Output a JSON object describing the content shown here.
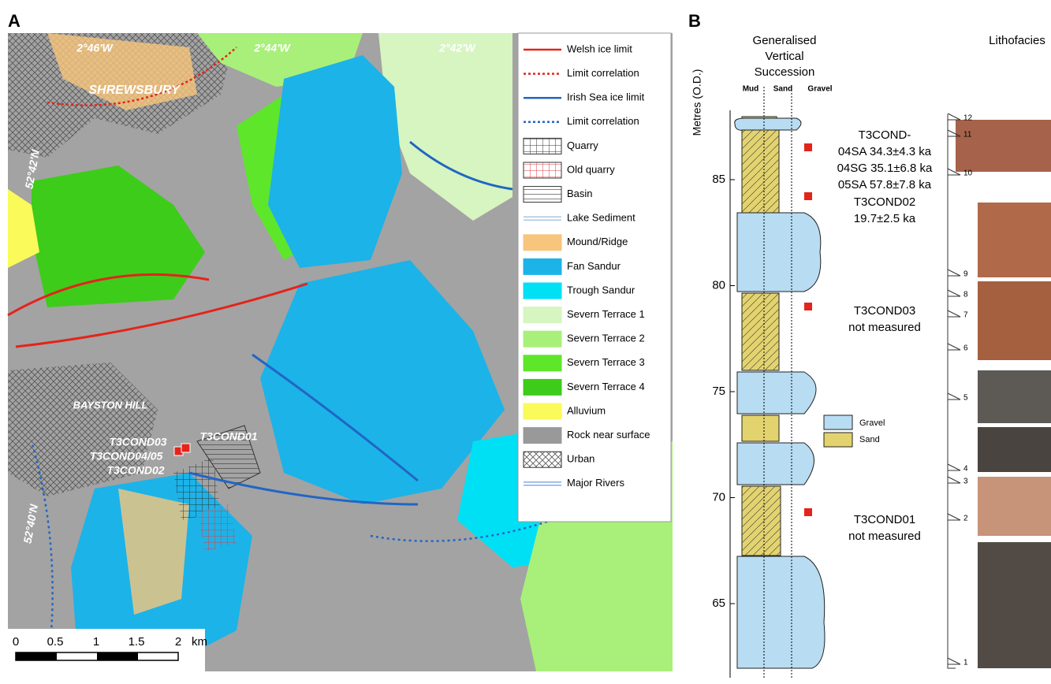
{
  "panel_a": {
    "label": "A",
    "map_labels": [
      "2°46'W",
      "2°44'W",
      "2°42'W",
      "SHREWSBURY",
      "52°42'N",
      "BAYSTON HILL",
      "T3COND03",
      "T3COND01",
      "T3COND04/05",
      "T3COND02",
      "52°40'N"
    ],
    "legend": [
      {
        "label": "Welsh ice limit",
        "color": "#e3241b",
        "style": "line"
      },
      {
        "label": "Limit correlation",
        "color": "#e3241b",
        "style": "dotted"
      },
      {
        "label": "Irish Sea ice limit",
        "color": "#2166c4",
        "style": "line"
      },
      {
        "label": "Limit correlation",
        "color": "#2166c4",
        "style": "dotted"
      },
      {
        "label": "Quarry",
        "color": "#333333",
        "style": "grid"
      },
      {
        "label": "Old quarry",
        "color": "#d9414a",
        "style": "grid"
      },
      {
        "label": "Basin",
        "color": "#333333",
        "style": "hlines"
      },
      {
        "label": "Lake Sediment",
        "color": "#8fb3d9",
        "style": "double"
      },
      {
        "label": "Mound/Ridge",
        "color": "#f7c57c",
        "style": "fill"
      },
      {
        "label": "Fan Sandur",
        "color": "#1cb3e8",
        "style": "fill"
      },
      {
        "label": "Trough Sandur",
        "color": "#00e0f5",
        "style": "fill"
      },
      {
        "label": "Severn Terrace 1",
        "color": "#d6f5c0",
        "style": "fill"
      },
      {
        "label": "Severn Terrace 2",
        "color": "#a8f07a",
        "style": "fill"
      },
      {
        "label": "Severn Terrace 3",
        "color": "#5ee62b",
        "style": "fill"
      },
      {
        "label": "Severn Terrace 4",
        "color": "#3dcc1a",
        "style": "fill"
      },
      {
        "label": "Alluvium",
        "color": "#fafa5a",
        "style": "fill"
      },
      {
        "label": "Rock near surface",
        "color": "#999999",
        "style": "fill"
      },
      {
        "label": "Urban",
        "color": "#666666",
        "style": "cross"
      },
      {
        "label": "Major Rivers",
        "color": "#5b8fd6",
        "style": "double"
      }
    ],
    "scale_labels": [
      "0",
      "0.5",
      "1",
      "1.5",
      "2",
      "km"
    ]
  },
  "panel_b": {
    "label": "B",
    "title_lines": [
      "Generalised",
      "Vertical",
      "Succession"
    ],
    "lithofacies_title": "Lithofacies",
    "columns": [
      "Mud",
      "Sand",
      "Gravel"
    ],
    "y_label": "Metres (O.D.)",
    "yticks": [
      65,
      70,
      75,
      80,
      85
    ],
    "samples": [
      [
        "T3COND-",
        "04SA 34.3±4.3 ka",
        "04SG 35.1±6.8 ka",
        "05SA 57.8±7.8 ka"
      ],
      [
        "T3COND02",
        "19.7±2.5 ka"
      ],
      [
        "T3COND03",
        "not measured"
      ],
      [
        "T3COND01",
        "not measured"
      ]
    ],
    "legend": [
      "Gravel",
      "Sand"
    ],
    "facies_numbers": [
      12,
      11,
      10,
      9,
      8,
      7,
      6,
      5,
      4,
      3,
      2,
      1
    ]
  }
}
